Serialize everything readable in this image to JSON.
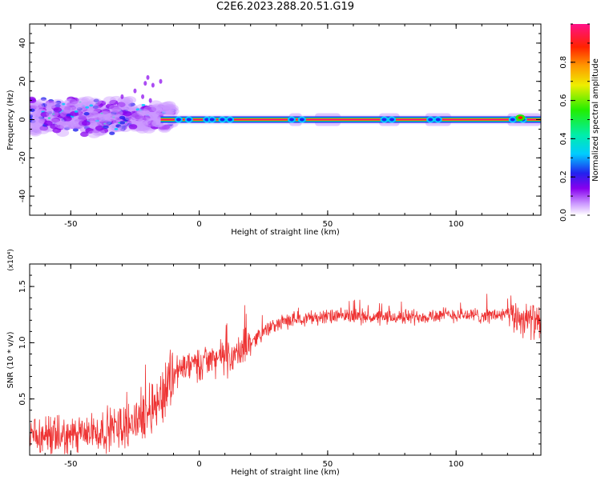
{
  "title": "C2E6.2023.288.20.51.G19",
  "colors": {
    "snr_line": "#ee3333",
    "frame": "#000000"
  },
  "chart_data": [
    {
      "type": "heatmap",
      "xlabel": "Height of straight line (km)",
      "ylabel": "Frequency (Hz)",
      "xlim": [
        -66,
        133
      ],
      "ylim": [
        -50,
        50
      ],
      "xticks": [
        -50,
        0,
        50,
        100
      ],
      "yticks": [
        -40,
        -20,
        0,
        20,
        40
      ],
      "colorbar": {
        "label": "Normalized spectral amplitude",
        "range": [
          0,
          1
        ],
        "ticks": [
          0.0,
          0.2,
          0.4,
          0.6,
          0.8
        ]
      },
      "description_points": {
        "ridge_frequency_hz": 0,
        "strong_ridge_from_km": -15,
        "strong_ridge_to_km": 130,
        "noisy_region_from_km": -66,
        "noisy_region_to_km": -10
      }
    },
    {
      "type": "line",
      "xlabel": "Height of straight line (km)",
      "ylabel": "SNR (10 * v/v)",
      "y_multiplier": "(x10⁴)",
      "xlim": [
        -66,
        133
      ],
      "ylim": [
        0,
        1.7
      ],
      "xticks": [
        -50,
        0,
        50,
        100
      ],
      "yticks": [
        0.5,
        1.0,
        1.5
      ],
      "ytick_labels": [
        "0.5",
        "1.0",
        "1.5"
      ],
      "series": [
        {
          "x": [
            -66,
            -60,
            -55,
            -50,
            -45,
            -40,
            -35,
            -30,
            -25,
            -20,
            -15,
            -12,
            -10,
            -5,
            0,
            5,
            8,
            10,
            15,
            20,
            25,
            30,
            35,
            40,
            50,
            60,
            70,
            80,
            90,
            100,
            110,
            120,
            125,
            130,
            133
          ],
          "y": [
            0.15,
            0.15,
            0.16,
            0.17,
            0.18,
            0.2,
            0.23,
            0.26,
            0.3,
            0.4,
            0.5,
            0.65,
            0.75,
            0.78,
            0.82,
            0.85,
            0.88,
            0.85,
            0.9,
            1.0,
            1.1,
            1.16,
            1.2,
            1.22,
            1.23,
            1.24,
            1.22,
            1.23,
            1.24,
            1.25,
            1.24,
            1.25,
            1.22,
            1.2,
            1.15
          ]
        }
      ]
    }
  ]
}
